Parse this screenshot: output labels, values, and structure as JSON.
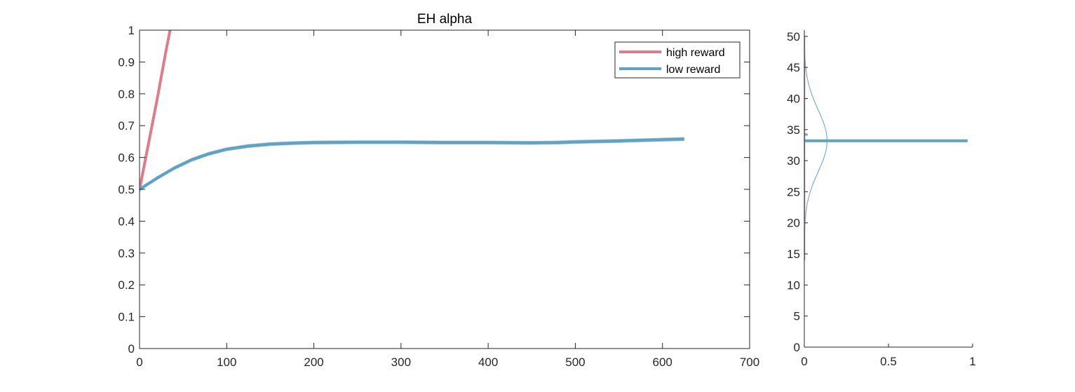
{
  "chart_data": [
    {
      "type": "line",
      "title": "EH  alpha",
      "xlabel": "",
      "ylabel": "",
      "xlim": [
        0,
        700
      ],
      "ylim": [
        0,
        1
      ],
      "xticks": [
        0,
        100,
        200,
        300,
        400,
        500,
        600,
        700
      ],
      "yticks": [
        0,
        0.1,
        0.2,
        0.3,
        0.4,
        0.5,
        0.6,
        0.7,
        0.8,
        0.9,
        1
      ],
      "xtick_labels": [
        "0",
        "100",
        "200",
        "300",
        "400",
        "500",
        "600",
        "700"
      ],
      "ytick_labels": [
        "0",
        "0.1",
        "0.2",
        "0.3",
        "0.4",
        "0.5",
        "0.6",
        "0.7",
        "0.8",
        "0.9",
        "1"
      ],
      "grid": false,
      "legend_position": "top-right",
      "series": [
        {
          "name": "high reward",
          "color": "#e07b8a",
          "band_color": "#cccccc",
          "x": [
            0,
            10,
            20,
            30,
            35
          ],
          "y": [
            0.5,
            0.64,
            0.78,
            0.93,
            1.0
          ],
          "band_halfwidth": 0.02
        },
        {
          "name": "low reward",
          "color": "#5ba3c7",
          "band_color": "#9fb8c6",
          "x": [
            0,
            20,
            40,
            60,
            80,
            100,
            125,
            150,
            175,
            200,
            250,
            300,
            350,
            400,
            450,
            480,
            500,
            550,
            600,
            625
          ],
          "y": [
            0.5,
            0.535,
            0.567,
            0.593,
            0.612,
            0.626,
            0.636,
            0.642,
            0.645,
            0.647,
            0.648,
            0.648,
            0.647,
            0.647,
            0.646,
            0.647,
            0.649,
            0.652,
            0.656,
            0.658
          ],
          "band_halfwidth": 0.006
        }
      ]
    },
    {
      "type": "line",
      "title": "",
      "xlabel": "",
      "ylabel": "",
      "xlim": [
        0,
        1
      ],
      "ylim": [
        0,
        51
      ],
      "xticks": [
        0,
        0.5,
        1
      ],
      "yticks": [
        0,
        5,
        10,
        15,
        20,
        25,
        30,
        35,
        40,
        45,
        50
      ],
      "xtick_labels": [
        "0",
        "0.5",
        "1"
      ],
      "ytick_labels": [
        "0",
        "5",
        "10",
        "15",
        "20",
        "25",
        "30",
        "35",
        "40",
        "45",
        "50"
      ],
      "grid": false,
      "hlines": [
        {
          "y": 33.2,
          "x_from": 0,
          "x_to": 0.97,
          "color": "#5ba3c7"
        }
      ],
      "short_marks": [
        {
          "y": 34.2,
          "x_from": 0,
          "x_to": 0.02,
          "color": "#5ba3c7"
        }
      ],
      "vlines": [
        {
          "x": 0.002,
          "y_from": 14,
          "y_to": 50,
          "color": "#e07b8a"
        }
      ],
      "density": {
        "color": "#5ba3c7",
        "center": 33.2,
        "sd": 5.0,
        "peak": 0.135,
        "y_from": 0,
        "y_to": 51
      }
    }
  ]
}
